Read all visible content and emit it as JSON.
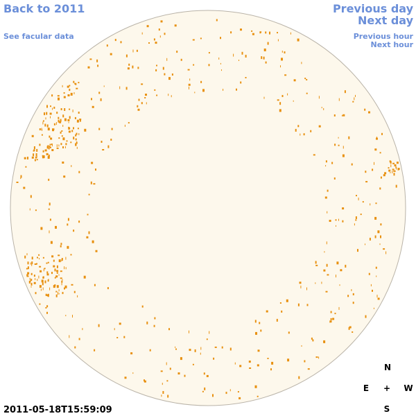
{
  "nav": {
    "back": "Back to 2011",
    "facular": "See facular data",
    "previous_day": "Previous day",
    "next_day": "Next day",
    "previous_hour": "Previous hour",
    "next_hour": "Next hour"
  },
  "compass": {
    "north": "N",
    "east": "E",
    "center": "+",
    "west": "W",
    "south": "S"
  },
  "timestamp": "2011-05-18T15:59:09"
}
